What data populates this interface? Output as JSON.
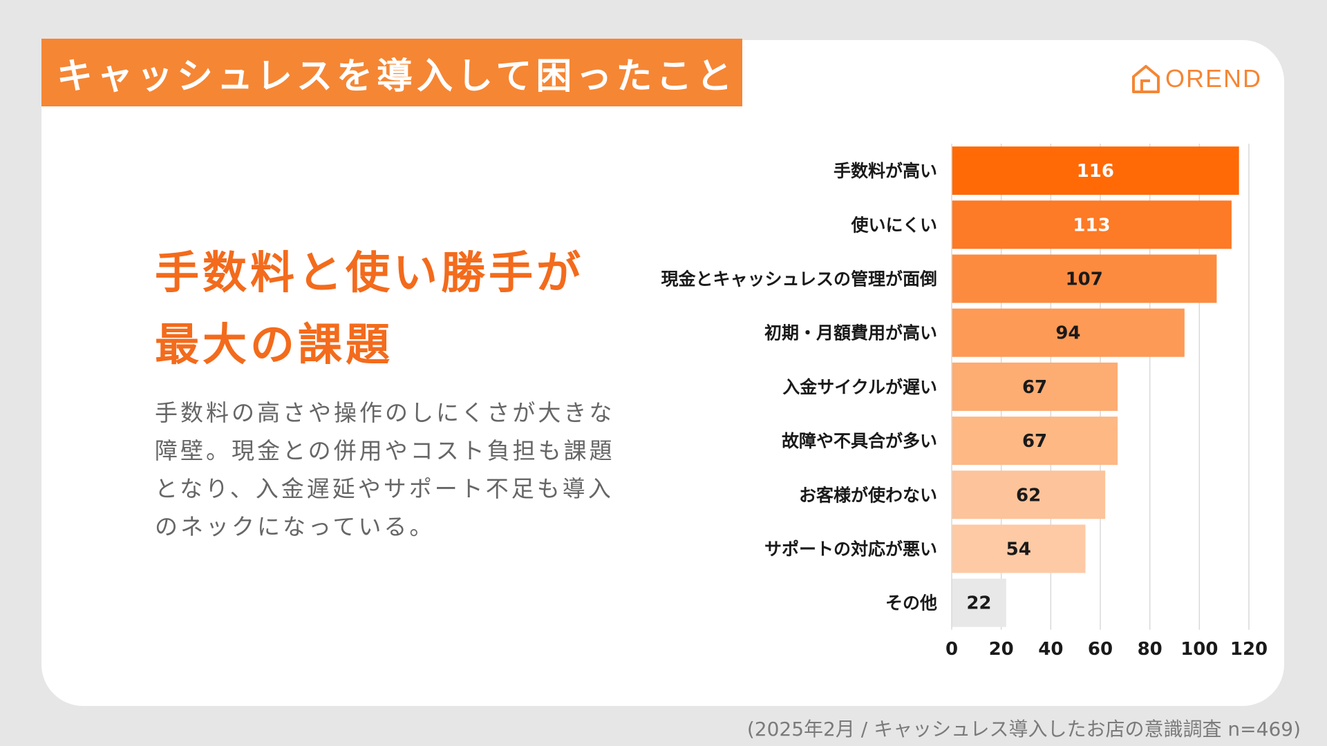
{
  "title": "キャッシュレスを導入して困ったこと",
  "logo": {
    "text": "OREND",
    "icon": "house-icon"
  },
  "headline": {
    "line1": "手数料と使い勝手が",
    "line2": "最大の課題"
  },
  "body": "手数料の高さや操作のしにくさが大きな障壁。現金との併用やコスト負担も課題となり、入金遅延やサポート不足も導入のネックになっている。",
  "footer": "(2025年2月 / キャッシュレス導入したお店の意識調査 n=469)",
  "colors": {
    "accent": "#f58634",
    "headline": "#f36b1c",
    "other_bar": "#e8e8e8"
  },
  "chart_data": {
    "type": "bar",
    "orientation": "horizontal",
    "categories": [
      "手数料が高い",
      "使いにくい",
      "現金とキャッシュレスの管理が面倒",
      "初期・月額費用が高い",
      "入金サイクルが遅い",
      "故障や不具合が多い",
      "お客様が使わない",
      "サポートの対応が悪い",
      "その他"
    ],
    "values": [
      116,
      113,
      107,
      94,
      67,
      67,
      62,
      54,
      22
    ],
    "bar_colors": [
      "#ff6a06",
      "#fd7a26",
      "#fd8b3f",
      "#fd9a55",
      "#fdac72",
      "#fdb884",
      "#fdc39a",
      "#fdcaa5",
      "#e8e8e8"
    ],
    "label_colors": [
      "#ffffff",
      "#ffffff",
      "#1a1a1a",
      "#1a1a1a",
      "#1a1a1a",
      "#1a1a1a",
      "#1a1a1a",
      "#1a1a1a",
      "#1a1a1a"
    ],
    "xlim": [
      0,
      120
    ],
    "xticks": [
      0,
      20,
      40,
      60,
      80,
      100,
      120
    ],
    "grid": true
  }
}
